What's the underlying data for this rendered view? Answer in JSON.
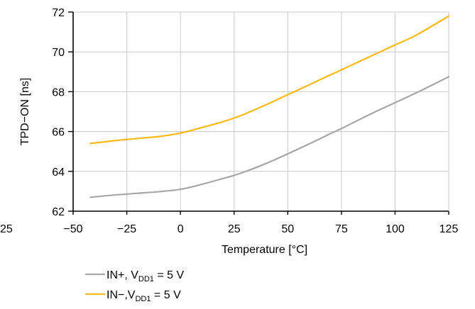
{
  "chart_data": {
    "type": "line",
    "title": "",
    "xlabel": "Temperature [°C]",
    "ylabel": "TPD−ON [ns]",
    "xlim": [
      -50,
      125
    ],
    "ylim": [
      62,
      72
    ],
    "x_ticks": [
      -50,
      -25,
      0,
      25,
      50,
      75,
      100,
      125
    ],
    "x_tick_labels": [
      "−50",
      "−25",
      "0",
      "25",
      "50",
      "75",
      "100",
      "125"
    ],
    "y_ticks": [
      62,
      64,
      66,
      68,
      70,
      72
    ],
    "y_tick_labels": [
      "62",
      "64",
      "66",
      "68",
      "70",
      "72"
    ],
    "stray_label": "25",
    "grid": true,
    "legend_position": "bottom-left",
    "series": [
      {
        "name_main": "IN+, V",
        "name_sub": "DD1",
        "name_tail": " = 5 V",
        "color": "#a6a6a6",
        "x": [
          -42,
          -30,
          -20,
          -10,
          0,
          10,
          20,
          25,
          30,
          40,
          50,
          60,
          70,
          75,
          80,
          90,
          100,
          110,
          125
        ],
        "values": [
          62.7,
          62.82,
          62.9,
          62.98,
          63.1,
          63.35,
          63.65,
          63.8,
          63.98,
          64.4,
          64.88,
          65.38,
          65.9,
          66.15,
          66.42,
          66.95,
          67.45,
          67.95,
          68.75
        ]
      },
      {
        "name_main": "IN−,V",
        "name_sub": "DD1",
        "name_tail": " = 5 V",
        "color": "#fdb913",
        "x": [
          -42,
          -30,
          -20,
          -10,
          0,
          10,
          20,
          25,
          30,
          40,
          50,
          60,
          70,
          75,
          80,
          90,
          100,
          110,
          125
        ],
        "values": [
          65.4,
          65.55,
          65.65,
          65.75,
          65.92,
          66.2,
          66.5,
          66.68,
          66.88,
          67.35,
          67.85,
          68.35,
          68.85,
          69.1,
          69.35,
          69.85,
          70.35,
          70.85,
          71.8
        ]
      }
    ]
  }
}
